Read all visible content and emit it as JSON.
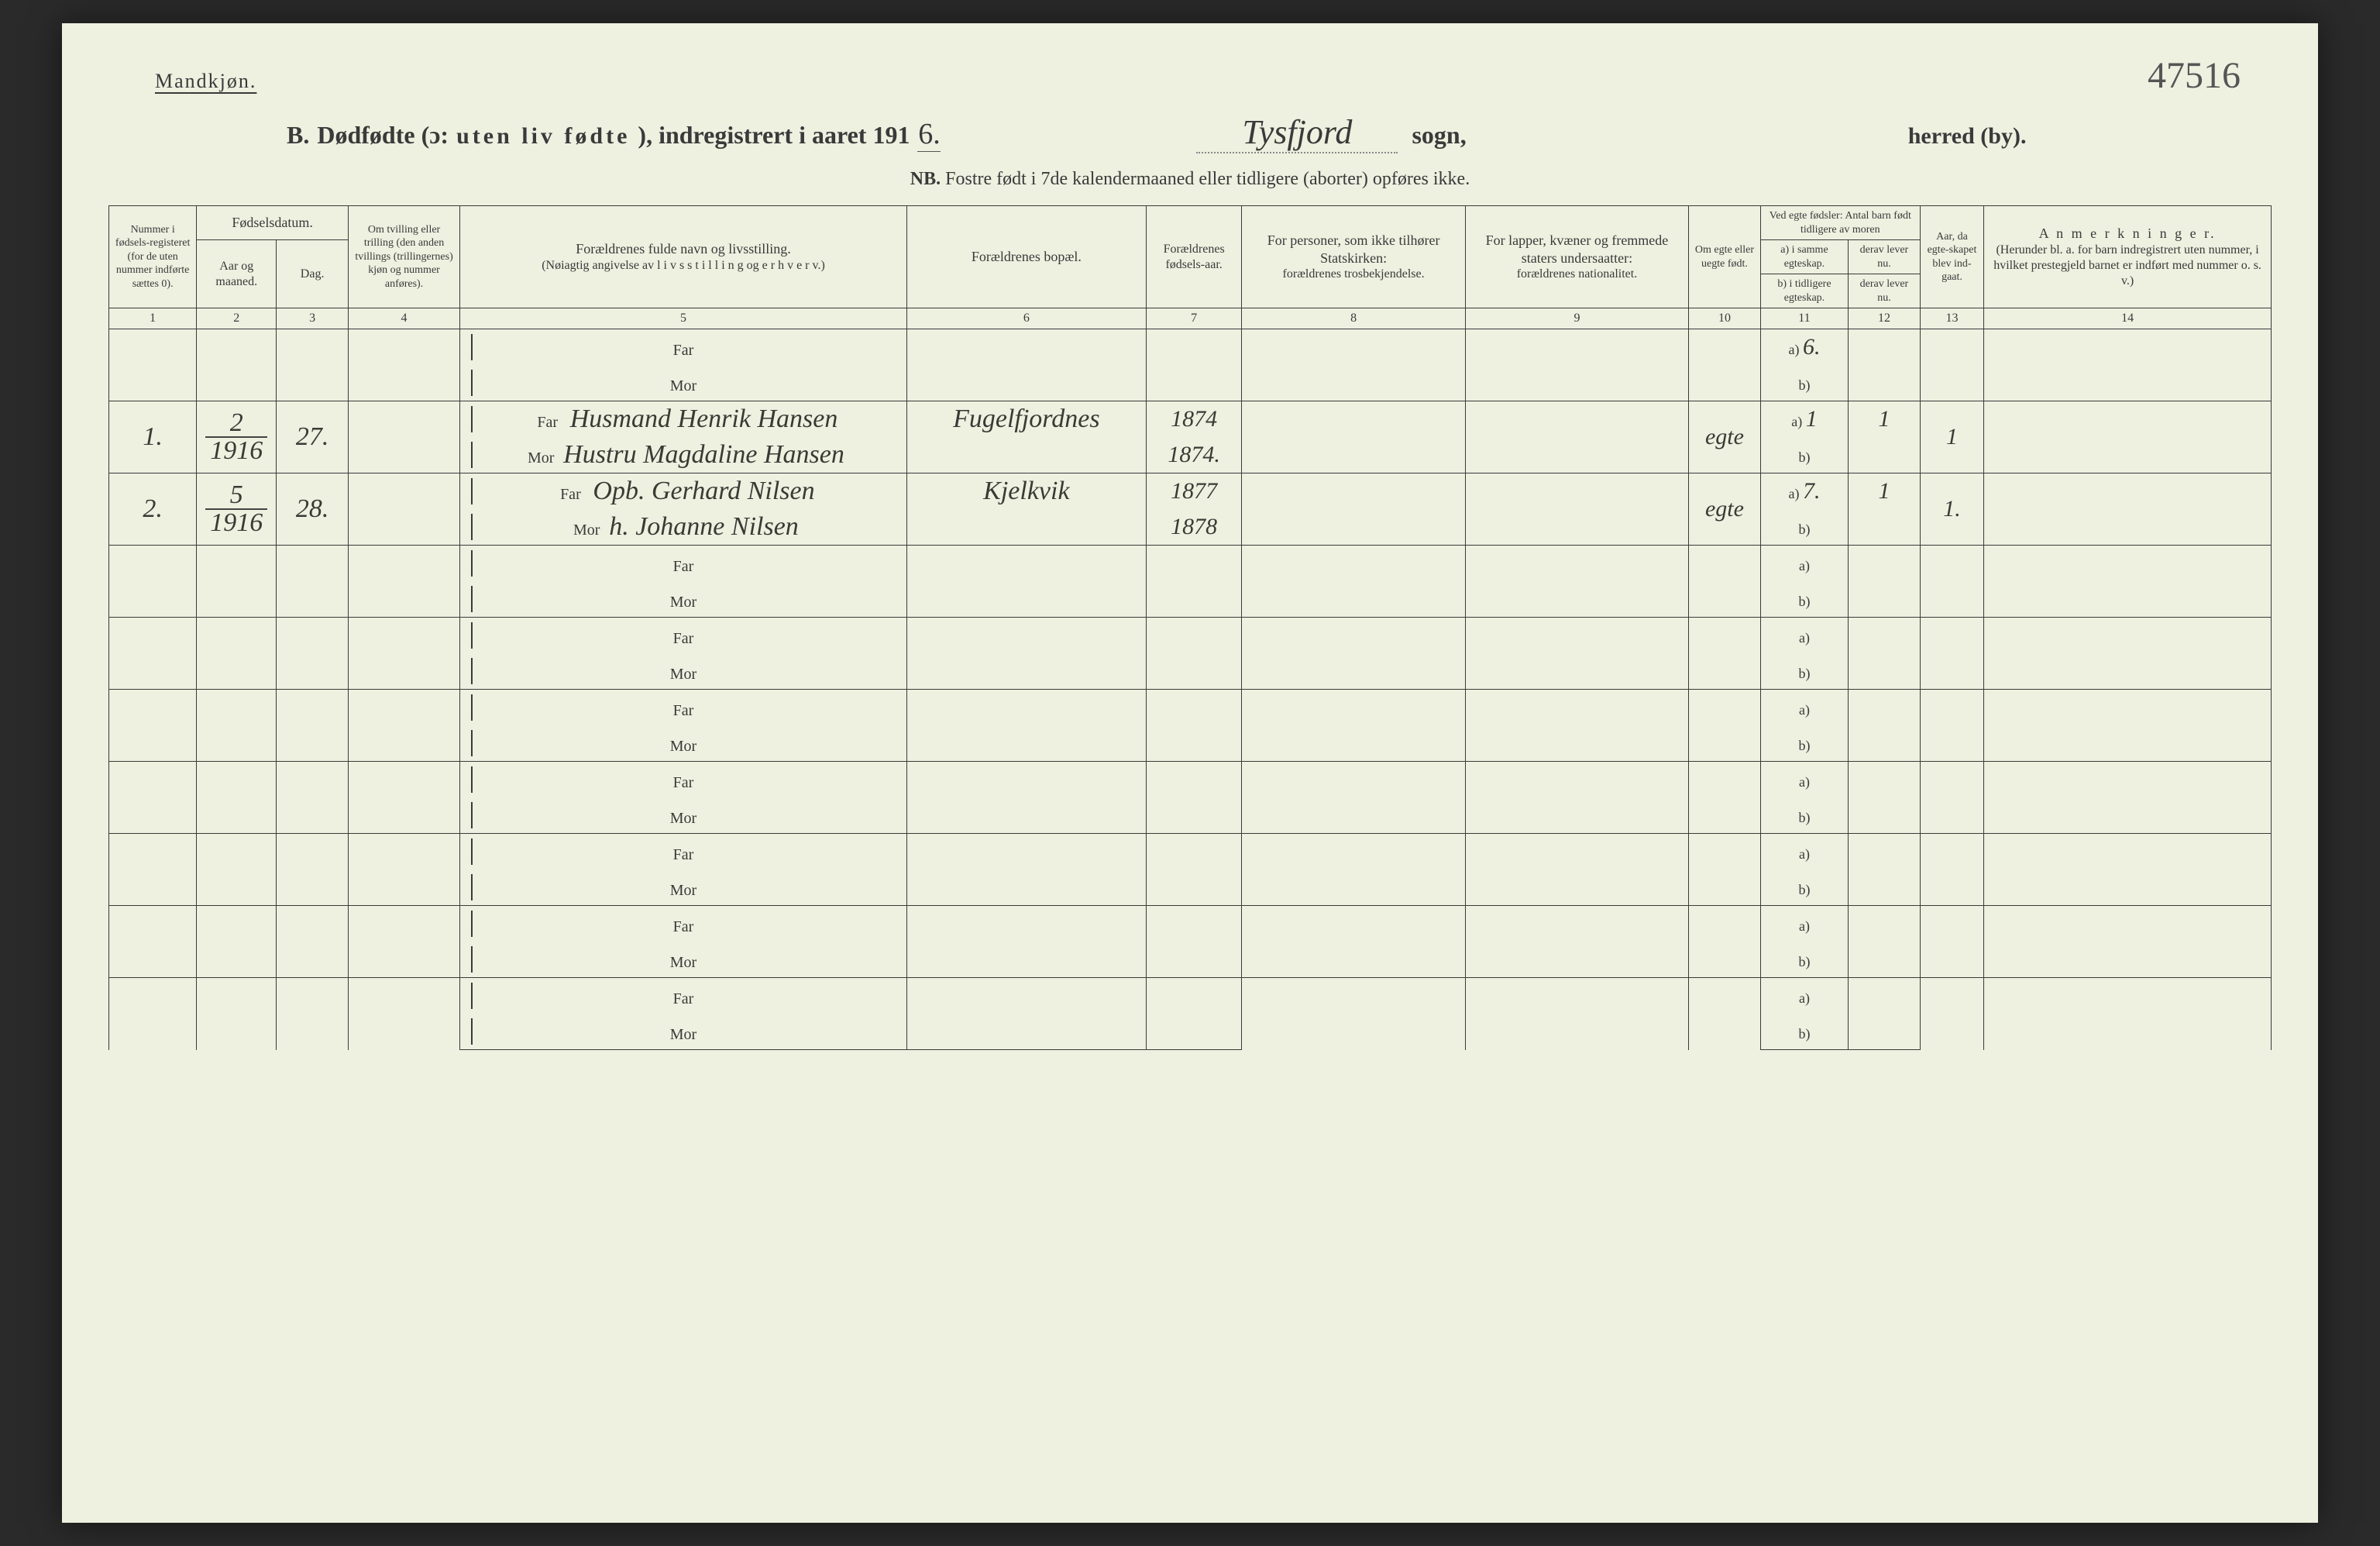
{
  "page": {
    "gender_label": "Mandkjøn.",
    "page_number": "47516",
    "title_prefix": "B.",
    "title_main": "Dødfødte (ɔ:",
    "title_spaced": "uten liv fødte",
    "title_suffix": "), indregistrert i aaret 191",
    "year_digit": "6.",
    "sogn_name": "Tysfjord",
    "sogn_label": "sogn,",
    "herred_label": "herred (by).",
    "nb_label": "NB.",
    "nb_text": "Fostre født i 7de kalendermaaned eller tidligere (aborter) opføres ikke."
  },
  "headers": {
    "c1": "Nummer i fødsels-registeret (for de uten nummer indførte sættes 0).",
    "c2_top": "Fødselsdatum.",
    "c2_a": "Aar og maaned.",
    "c2_b": "Dag.",
    "c4": "Om tvilling eller trilling (den anden tvillings (trillingernes) kjøn og nummer anføres).",
    "c5_a": "Forældrenes fulde navn og livsstilling.",
    "c5_b": "(Nøiagtig angivelse av  l i v s s t i l l i n g  og e r h v e r v.)",
    "c6": "Forældrenes bopæl.",
    "c7": "Forældrenes fødsels-aar.",
    "c8_a": "For personer, som ikke tilhører Statskirken:",
    "c8_b": "forældrenes trosbekjendelse.",
    "c9_a": "For lapper, kvæner og fremmede staters undersaatter:",
    "c9_b": "forældrenes nationalitet.",
    "c10": "Om egte eller uegte født.",
    "c11_top": "Ved egte fødsler: Antal barn født tidligere av moren",
    "c11_a": "a) i samme egteskap.",
    "c11_b": "b) i tidligere egteskap.",
    "c12_top": "",
    "c12_a": "derav lever nu.",
    "c12_b": "derav lever nu.",
    "c13": "Aar, da egte-skapet blev ind-gaat.",
    "c14_a": "A n m e r k n i n g e r.",
    "c14_b": "(Herunder bl. a. for barn indregistrert uten nummer, i hvilket prestegjeld barnet er indført med nummer o. s. v.)"
  },
  "colnums": [
    "1",
    "2",
    "3",
    "4",
    "5",
    "6",
    "7",
    "8",
    "9",
    "10",
    "11",
    "12",
    "13",
    "14"
  ],
  "labels": {
    "far": "Far",
    "mor": "Mor",
    "a": "a)",
    "b": "b)"
  },
  "rows": [
    {
      "num": "",
      "aar": "",
      "dag": "",
      "tvil": "",
      "far_name": "",
      "mor_name": "",
      "bopel": "",
      "far_aar": "",
      "mor_aar": "",
      "tros": "",
      "nat": "",
      "egte": "",
      "a_val": "6.",
      "b_val": "",
      "c12a": "",
      "c12b": "",
      "c13": "",
      "anm": ""
    },
    {
      "num": "1.",
      "aar_n": "2",
      "aar_d": "1916",
      "dag": "27.",
      "tvil": "",
      "far_name": "Husmand Henrik Hansen",
      "mor_name": "Hustru Magdaline Hansen",
      "bopel": "Fugelfjordnes",
      "far_aar": "1874",
      "mor_aar": "1874.",
      "tros": "",
      "nat": "",
      "egte": "egte",
      "a_val": "1",
      "b_val": "",
      "c12a": "1",
      "c12b": "",
      "c13": "1",
      "anm": ""
    },
    {
      "num": "2.",
      "aar_n": "5",
      "aar_d": "1916",
      "dag": "28.",
      "tvil": "",
      "far_name": "Opb. Gerhard Nilsen",
      "mor_name": "h. Johanne Nilsen",
      "bopel": "Kjelkvik",
      "far_aar": "1877",
      "mor_aar": "1878",
      "tros": "",
      "nat": "",
      "egte": "egte",
      "a_val": "7.",
      "b_val": "",
      "c12a": "1",
      "c12b": "",
      "c13": "1.",
      "anm": ""
    },
    {
      "blank": true
    },
    {
      "blank": true
    },
    {
      "blank": true
    },
    {
      "blank": true
    },
    {
      "blank": true
    },
    {
      "blank": true
    },
    {
      "blank": true
    }
  ],
  "style": {
    "page_bg": "#eef0e0",
    "ink": "#3a3a3a",
    "rule": "#3a3a3a",
    "hand_ink": "#3a3a35"
  }
}
